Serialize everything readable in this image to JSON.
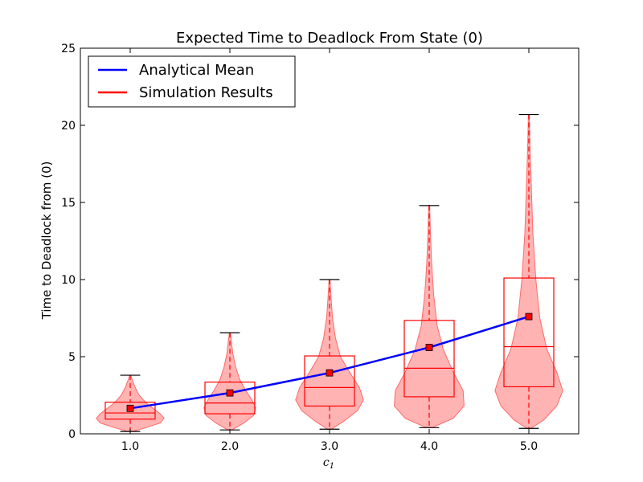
{
  "chart_data": {
    "type": "violin",
    "title": "Expected Time to Deadlock From State (0)",
    "xlabel_base": "c",
    "xlabel_sub": "1",
    "ylabel": "Time to Deadlock from (0)",
    "xlim": [
      0.5,
      5.5
    ],
    "ylim": [
      0,
      25
    ],
    "categories": [
      "1.0",
      "2.0",
      "3.0",
      "4.0",
      "5.0"
    ],
    "x": [
      1,
      2,
      3,
      4,
      5
    ],
    "yticks": [
      "0",
      "5",
      "10",
      "15",
      "20",
      "25"
    ],
    "ytick_values": [
      0,
      5,
      10,
      15,
      20,
      25
    ],
    "legend": {
      "placement": "top-left",
      "entries": [
        {
          "label": "Analytical Mean",
          "color": "#0000ff"
        },
        {
          "label": "Simulation Results",
          "color": "#ff0000"
        }
      ]
    },
    "analytical_mean": [
      1.65,
      2.65,
      3.95,
      5.6,
      7.6
    ],
    "simulation_mean": [
      1.65,
      2.65,
      3.95,
      5.6,
      7.6
    ],
    "boxes": [
      {
        "min": 0.15,
        "q1": 0.95,
        "median": 1.35,
        "q3": 2.05,
        "max": 3.8
      },
      {
        "min": 0.25,
        "q1": 1.3,
        "median": 2.0,
        "q3": 3.35,
        "max": 6.55
      },
      {
        "min": 0.3,
        "q1": 1.8,
        "median": 3.0,
        "q3": 5.05,
        "max": 10.0
      },
      {
        "min": 0.4,
        "q1": 2.4,
        "median": 4.25,
        "q3": 7.35,
        "max": 14.8
      },
      {
        "min": 0.35,
        "q1": 3.05,
        "median": 5.65,
        "q3": 10.1,
        "max": 20.7
      }
    ],
    "violins": [
      {
        "profile": [
          [
            0.15,
            0.02
          ],
          [
            0.4,
            0.16
          ],
          [
            0.7,
            0.3
          ],
          [
            1.0,
            0.34
          ],
          [
            1.3,
            0.3
          ],
          [
            1.6,
            0.24
          ],
          [
            2.0,
            0.16
          ],
          [
            2.5,
            0.09
          ],
          [
            3.0,
            0.05
          ],
          [
            3.5,
            0.02
          ],
          [
            3.8,
            0.005
          ]
        ]
      },
      {
        "profile": [
          [
            0.25,
            0.02
          ],
          [
            0.7,
            0.14
          ],
          [
            1.2,
            0.24
          ],
          [
            1.7,
            0.26
          ],
          [
            2.2,
            0.22
          ],
          [
            2.8,
            0.16
          ],
          [
            3.5,
            0.1
          ],
          [
            4.3,
            0.06
          ],
          [
            5.2,
            0.03
          ],
          [
            6.0,
            0.015
          ],
          [
            6.55,
            0.005
          ]
        ]
      },
      {
        "profile": [
          [
            0.3,
            0.02
          ],
          [
            0.8,
            0.14
          ],
          [
            1.5,
            0.28
          ],
          [
            2.2,
            0.34
          ],
          [
            3.0,
            0.3
          ],
          [
            4.0,
            0.2
          ],
          [
            5.0,
            0.11
          ],
          [
            6.2,
            0.06
          ],
          [
            7.5,
            0.03
          ],
          [
            8.8,
            0.015
          ],
          [
            10.0,
            0.005
          ]
        ]
      },
      {
        "profile": [
          [
            0.4,
            0.03
          ],
          [
            1.0,
            0.24
          ],
          [
            1.8,
            0.35
          ],
          [
            2.8,
            0.34
          ],
          [
            4.0,
            0.24
          ],
          [
            5.5,
            0.14
          ],
          [
            7.0,
            0.08
          ],
          [
            9.0,
            0.045
          ],
          [
            11.0,
            0.025
          ],
          [
            13.0,
            0.012
          ],
          [
            14.8,
            0.005
          ]
        ]
      },
      {
        "profile": [
          [
            0.35,
            0.02
          ],
          [
            0.9,
            0.15
          ],
          [
            1.8,
            0.28
          ],
          [
            2.8,
            0.34
          ],
          [
            4.0,
            0.28
          ],
          [
            5.5,
            0.18
          ],
          [
            7.5,
            0.11
          ],
          [
            10.0,
            0.07
          ],
          [
            13.0,
            0.04
          ],
          [
            16.0,
            0.025
          ],
          [
            18.5,
            0.012
          ],
          [
            20.7,
            0.005
          ]
        ]
      }
    ],
    "colors": {
      "violin_fill": "#ff9999",
      "violin_edge": "#ff6b6b",
      "box": "#ff0000",
      "median": "#ff0000",
      "whisker": "#ff0000",
      "cap": "#000000",
      "mean_line": "#0000ff",
      "mean_marker": "#ff0000"
    }
  }
}
